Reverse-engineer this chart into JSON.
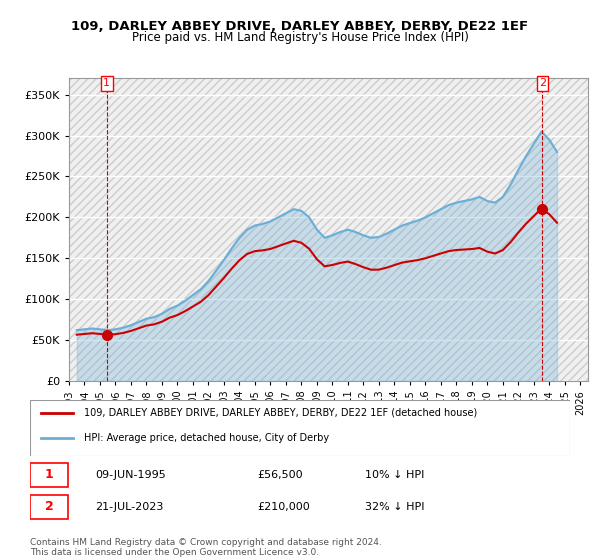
{
  "title": "109, DARLEY ABBEY DRIVE, DARLEY ABBEY, DERBY, DE22 1EF",
  "subtitle": "Price paid vs. HM Land Registry's House Price Index (HPI)",
  "hpi_label": "HPI: Average price, detached house, City of Derby",
  "property_label": "109, DARLEY ABBEY DRIVE, DARLEY ABBEY, DERBY, DE22 1EF (detached house)",
  "legend_note1": "1    09-JUN-1995          £56,500        10% ↓ HPI",
  "legend_note2": "2    21-JUL-2023          £210,000      32% ↓ HPI",
  "footer": "Contains HM Land Registry data © Crown copyright and database right 2024.\nThis data is licensed under the Open Government Licence v3.0.",
  "hpi_color": "#6baed6",
  "property_color": "#cc0000",
  "sale1_year": 1995.44,
  "sale1_price": 56500,
  "sale1_label": "1",
  "sale2_year": 2023.55,
  "sale2_price": 210000,
  "sale2_label": "2",
  "ylim": [
    0,
    370000
  ],
  "xlim_start": 1993,
  "xlim_end": 2026.5,
  "background_hatch_color": "#e8e8e8",
  "hpi_data": {
    "years": [
      1993.5,
      1994.0,
      1994.5,
      1995.0,
      1995.5,
      1996.0,
      1996.5,
      1997.0,
      1997.5,
      1998.0,
      1998.5,
      1999.0,
      1999.5,
      2000.0,
      2000.5,
      2001.0,
      2001.5,
      2002.0,
      2002.5,
      2003.0,
      2003.5,
      2004.0,
      2004.5,
      2005.0,
      2005.5,
      2006.0,
      2006.5,
      2007.0,
      2007.5,
      2008.0,
      2008.5,
      2009.0,
      2009.5,
      2010.0,
      2010.5,
      2011.0,
      2011.5,
      2012.0,
      2012.5,
      2013.0,
      2013.5,
      2014.0,
      2014.5,
      2015.0,
      2015.5,
      2016.0,
      2016.5,
      2017.0,
      2017.5,
      2018.0,
      2018.5,
      2019.0,
      2019.5,
      2020.0,
      2020.5,
      2021.0,
      2021.5,
      2022.0,
      2022.5,
      2023.0,
      2023.5,
      2024.0,
      2024.5
    ],
    "values": [
      62000,
      63000,
      64000,
      63000,
      62000,
      63000,
      65000,
      68000,
      72000,
      76000,
      78000,
      82000,
      88000,
      92000,
      98000,
      105000,
      112000,
      122000,
      135000,
      148000,
      162000,
      175000,
      185000,
      190000,
      192000,
      195000,
      200000,
      205000,
      210000,
      208000,
      200000,
      185000,
      175000,
      178000,
      182000,
      185000,
      182000,
      178000,
      175000,
      176000,
      180000,
      185000,
      190000,
      193000,
      196000,
      200000,
      205000,
      210000,
      215000,
      218000,
      220000,
      222000,
      225000,
      220000,
      218000,
      225000,
      240000,
      258000,
      275000,
      290000,
      305000,
      295000,
      280000
    ]
  }
}
